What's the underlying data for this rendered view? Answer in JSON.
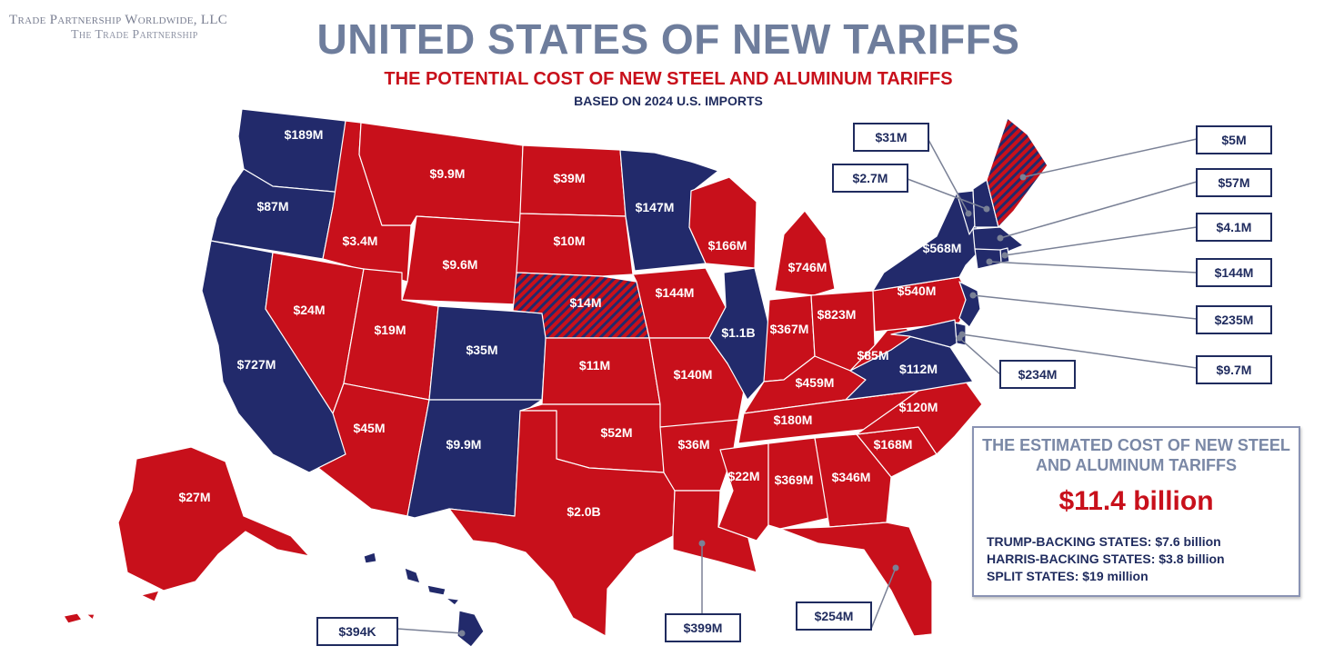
{
  "header": {
    "org_line1": "Trade Partnership Worldwide, LLC",
    "org_line2": "The Trade Partnership",
    "title": "UNITED STATES OF NEW TARIFFS",
    "subtitle": "THE POTENTIAL COST OF NEW STEEL AND ALUMINUM TARIFFS",
    "basis": "BASED ON 2024 U.S. IMPORTS"
  },
  "colors": {
    "trump": "#c8101b",
    "harris": "#222a6b",
    "split_stripe": "#c8101b",
    "callout_border": "#1f2b5e",
    "title_gray": "#6e7d9c"
  },
  "states": [
    {
      "code": "WA",
      "group": "harris",
      "value": "$189M"
    },
    {
      "code": "OR",
      "group": "harris",
      "value": "$87M"
    },
    {
      "code": "CA",
      "group": "harris",
      "value": "$727M"
    },
    {
      "code": "ID",
      "group": "trump",
      "value": "$3.4M"
    },
    {
      "code": "NV",
      "group": "trump",
      "value": "$24M"
    },
    {
      "code": "MT",
      "group": "trump",
      "value": "$9.9M"
    },
    {
      "code": "WY",
      "group": "trump",
      "value": "$9.6M"
    },
    {
      "code": "UT",
      "group": "trump",
      "value": "$19M"
    },
    {
      "code": "AZ",
      "group": "trump",
      "value": "$45M"
    },
    {
      "code": "CO",
      "group": "harris",
      "value": "$35M"
    },
    {
      "code": "NM",
      "group": "harris",
      "value": "$9.9M"
    },
    {
      "code": "ND",
      "group": "trump",
      "value": "$39M"
    },
    {
      "code": "SD",
      "group": "trump",
      "value": "$10M"
    },
    {
      "code": "NE",
      "group": "split",
      "value": "$14M"
    },
    {
      "code": "KS",
      "group": "trump",
      "value": "$11M"
    },
    {
      "code": "OK",
      "group": "trump",
      "value": "$52M"
    },
    {
      "code": "TX",
      "group": "trump",
      "value": "$2.0B"
    },
    {
      "code": "MN",
      "group": "harris",
      "value": "$147M"
    },
    {
      "code": "IA",
      "group": "trump",
      "value": "$144M"
    },
    {
      "code": "MO",
      "group": "trump",
      "value": "$140M"
    },
    {
      "code": "AR",
      "group": "trump",
      "value": "$36M"
    },
    {
      "code": "LA",
      "group": "trump",
      "value": "$399M"
    },
    {
      "code": "WI",
      "group": "trump",
      "value": "$166M"
    },
    {
      "code": "IL",
      "group": "harris",
      "value": "$1.1B"
    },
    {
      "code": "MI",
      "group": "trump",
      "value": "$746M"
    },
    {
      "code": "IN",
      "group": "trump",
      "value": "$367M"
    },
    {
      "code": "OH",
      "group": "trump",
      "value": "$823M"
    },
    {
      "code": "KY",
      "group": "trump",
      "value": "$459M"
    },
    {
      "code": "TN",
      "group": "trump",
      "value": "$180M"
    },
    {
      "code": "MS",
      "group": "trump",
      "value": "$22M"
    },
    {
      "code": "AL",
      "group": "trump",
      "value": "$369M"
    },
    {
      "code": "GA",
      "group": "trump",
      "value": "$346M"
    },
    {
      "code": "FL",
      "group": "trump",
      "value": "$254M"
    },
    {
      "code": "SC",
      "group": "trump",
      "value": "$168M"
    },
    {
      "code": "NC",
      "group": "trump",
      "value": "$120M"
    },
    {
      "code": "VA",
      "group": "harris",
      "value": "$112M"
    },
    {
      "code": "WV",
      "group": "trump",
      "value": "$85M"
    },
    {
      "code": "PA",
      "group": "trump",
      "value": "$540M"
    },
    {
      "code": "NY",
      "group": "harris",
      "value": "$568M"
    },
    {
      "code": "VT",
      "group": "harris",
      "value": "$31M"
    },
    {
      "code": "NH",
      "group": "harris",
      "value": "$2.7M"
    },
    {
      "code": "ME",
      "group": "split",
      "value": "$5M"
    },
    {
      "code": "MA",
      "group": "harris",
      "value": "$57M"
    },
    {
      "code": "RI",
      "group": "harris",
      "value": "$4.1M"
    },
    {
      "code": "CT",
      "group": "harris",
      "value": "$144M"
    },
    {
      "code": "NJ",
      "group": "harris",
      "value": "$235M"
    },
    {
      "code": "DE",
      "group": "harris",
      "value": "$9.7M"
    },
    {
      "code": "MD",
      "group": "harris",
      "value": "$234M"
    },
    {
      "code": "AK",
      "group": "trump",
      "value": "$27M"
    },
    {
      "code": "HI",
      "group": "harris",
      "value": "$394K"
    }
  ],
  "summary": {
    "heading": "THE ESTIMATED COST OF NEW STEEL AND ALUMINUM TARIFFS",
    "total": "$11.4 billion",
    "lines": [
      "TRUMP-BACKING STATES: $7.6 billion",
      "HARRIS-BACKING STATES: $3.8 billion",
      "SPLIT STATES: $19 million"
    ]
  }
}
